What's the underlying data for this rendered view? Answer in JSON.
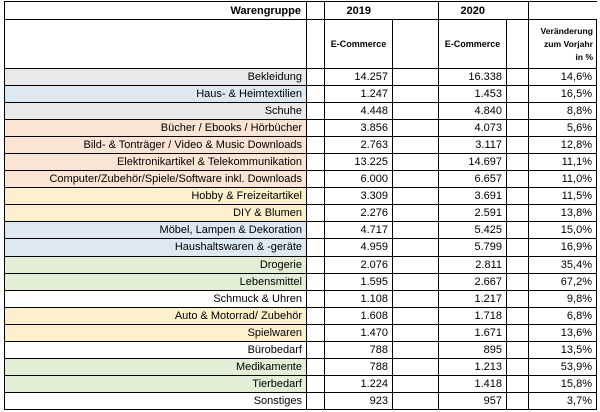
{
  "header": {
    "col_category": "Warengruppe",
    "year1": "2019",
    "year2": "2020",
    "sub_year1": "E-Commerce",
    "sub_year2": "E-Commerce",
    "change_line1": "Veränderung",
    "change_line2": "zum Vorjahr",
    "change_line3": "in %"
  },
  "colors": {
    "gray": "#e9e9e9",
    "blue": "#dce8f2",
    "orange": "#fbe4d4",
    "yellow": "#fdf0cd",
    "green": "#e2eed6",
    "white": "#ffffff"
  },
  "rows": [
    {
      "category": "Bekleidung",
      "v2019": "14.257",
      "v2020": "16.338",
      "change": "14,6%",
      "color": "gray"
    },
    {
      "category": "Haus- & Heimtextilien",
      "v2019": "1.247",
      "v2020": "1.453",
      "change": "16,5%",
      "color": "blue"
    },
    {
      "category": "Schuhe",
      "v2019": "4.448",
      "v2020": "4.840",
      "change": "8,8%",
      "color": "gray"
    },
    {
      "category": "Bücher / Ebooks / Hörbücher",
      "v2019": "3.856",
      "v2020": "4.073",
      "change": "5,6%",
      "color": "orange"
    },
    {
      "category": "Bild- & Tonträger / Video & Music Downloads",
      "v2019": "2.763",
      "v2020": "3.117",
      "change": "12,8%",
      "color": "orange"
    },
    {
      "category": "Elektronikartikel & Telekommunikation",
      "v2019": "13.225",
      "v2020": "14.697",
      "change": "11,1%",
      "color": "orange"
    },
    {
      "category": "Computer/Zubehör/Spiele/Software inkl. Downloads",
      "v2019": "6.000",
      "v2020": "6.657",
      "change": "11,0%",
      "color": "orange"
    },
    {
      "category": "Hobby & Freizeitartikel",
      "v2019": "3.309",
      "v2020": "3.691",
      "change": "11,5%",
      "color": "yellow"
    },
    {
      "category": "DIY & Blumen",
      "v2019": "2.276",
      "v2020": "2.591",
      "change": "13,8%",
      "color": "yellow"
    },
    {
      "category": "Möbel, Lampen & Dekoration",
      "v2019": "4.717",
      "v2020": "5.425",
      "change": "15,0%",
      "color": "blue"
    },
    {
      "category": "Haushaltswaren & -geräte",
      "v2019": "4.959",
      "v2020": "5.799",
      "change": "16,9%",
      "color": "blue"
    },
    {
      "category": "Drogerie",
      "v2019": "2.076",
      "v2020": "2.811",
      "change": "35,4%",
      "color": "green"
    },
    {
      "category": "Lebensmittel",
      "v2019": "1.595",
      "v2020": "2.667",
      "change": "67,2%",
      "color": "green"
    },
    {
      "category": "Schmuck & Uhren",
      "v2019": "1.108",
      "v2020": "1.217",
      "change": "9,8%",
      "color": "white"
    },
    {
      "category": "Auto & Motorrad/ Zubehör",
      "v2019": "1.608",
      "v2020": "1.718",
      "change": "6,8%",
      "color": "yellow"
    },
    {
      "category": "Spielwaren",
      "v2019": "1.470",
      "v2020": "1.671",
      "change": "13,6%",
      "color": "yellow"
    },
    {
      "category": "Bürobedarf",
      "v2019": "788",
      "v2020": "895",
      "change": "13,5%",
      "color": "white"
    },
    {
      "category": "Medikamente",
      "v2019": "788",
      "v2020": "1.213",
      "change": "53,9%",
      "color": "green"
    },
    {
      "category": "Tierbedarf",
      "v2019": "1.224",
      "v2020": "1.418",
      "change": "15,8%",
      "color": "green"
    },
    {
      "category": "Sonstiges",
      "v2019": "923",
      "v2020": "957",
      "change": "3,7%",
      "color": "white"
    }
  ]
}
